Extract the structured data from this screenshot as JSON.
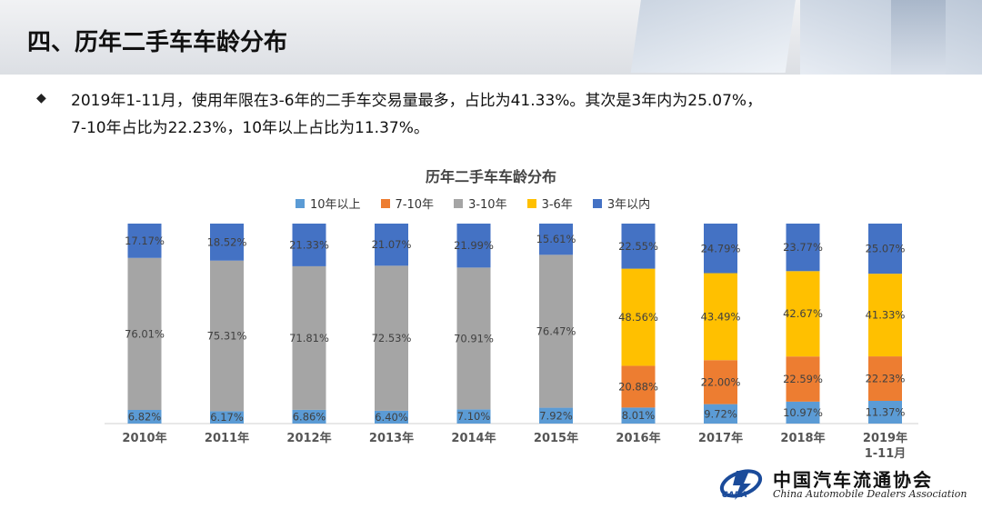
{
  "header": {
    "title": "四、历年二手车车龄分布"
  },
  "summary": {
    "line1": "2019年1-11月，使用年限在3-6年的二手车交易量最多，占比为41.33%。其次是3年内为25.07%，",
    "line2": "7-10年占比为22.23%，10年以上占比为11.37%。"
  },
  "logo": {
    "cn": "中国汽车流通协会",
    "en": "China Automobile Dealers Association",
    "abbr": "CADA"
  },
  "chart_data": {
    "type": "bar",
    "stacked": true,
    "percent_stacked": true,
    "title": "历年二手车车龄分布",
    "categories": [
      "2010年",
      "2011年",
      "2012年",
      "2013年",
      "2014年",
      "2015年",
      "2016年",
      "2017年",
      "2018年",
      "2019年\n1-11月"
    ],
    "series": [
      {
        "name": "10年以上",
        "color": "#5b9bd5",
        "values": [
          6.82,
          6.17,
          6.86,
          6.4,
          7.1,
          7.92,
          8.01,
          9.72,
          10.97,
          11.37
        ]
      },
      {
        "name": "7-10年",
        "color": "#ed7d31",
        "values": [
          null,
          null,
          null,
          null,
          null,
          null,
          20.88,
          22.0,
          22.59,
          22.23
        ]
      },
      {
        "name": "3-10年",
        "color": "#a5a5a5",
        "values": [
          76.01,
          75.31,
          71.81,
          72.53,
          70.91,
          76.47,
          null,
          null,
          null,
          null
        ]
      },
      {
        "name": "3-6年",
        "color": "#ffc000",
        "values": [
          null,
          null,
          null,
          null,
          null,
          null,
          48.56,
          43.49,
          42.67,
          41.33
        ]
      },
      {
        "name": "3年以内",
        "color": "#4472c4",
        "values": [
          17.17,
          18.52,
          21.33,
          21.07,
          21.99,
          15.61,
          22.55,
          24.79,
          23.77,
          25.07
        ]
      }
    ],
    "ylim": [
      0,
      100
    ],
    "legend_position": "top",
    "grid": false
  }
}
